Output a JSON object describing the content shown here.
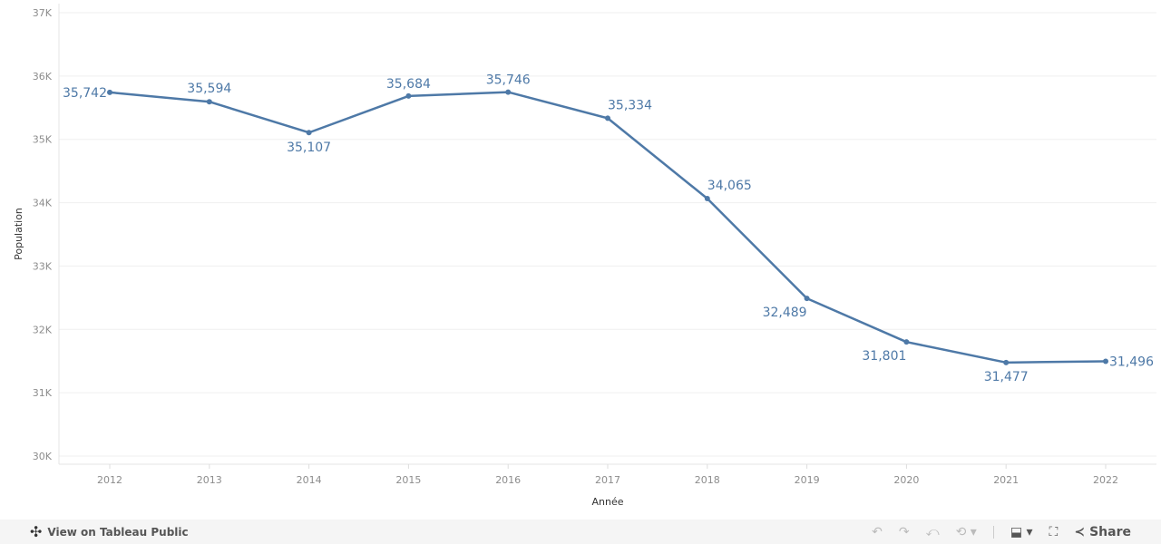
{
  "chart_data": {
    "type": "line",
    "x": [
      2012,
      2013,
      2014,
      2015,
      2016,
      2017,
      2018,
      2019,
      2020,
      2021,
      2022
    ],
    "values": [
      35742,
      35594,
      35107,
      35684,
      35746,
      35334,
      34065,
      32489,
      31801,
      31477,
      31496
    ],
    "data_labels": [
      "35,742",
      "35,594",
      "35,107",
      "35,684",
      "35,746",
      "35,334",
      "34,065",
      "32,489",
      "31,801",
      "31,477",
      "31,496"
    ],
    "xlabel": "Année",
    "ylabel": "Population",
    "ylim": [
      30000,
      37000
    ],
    "yticks": [
      "30K",
      "31K",
      "32K",
      "33K",
      "34K",
      "35K",
      "36K",
      "37K"
    ],
    "xticks": [
      "2012",
      "2013",
      "2014",
      "2015",
      "2016",
      "2017",
      "2018",
      "2019",
      "2020",
      "2021",
      "2022"
    ],
    "grid": true,
    "color": "#4e79a7"
  },
  "footer": {
    "view_link": "View on Tableau Public",
    "share": "Share"
  }
}
